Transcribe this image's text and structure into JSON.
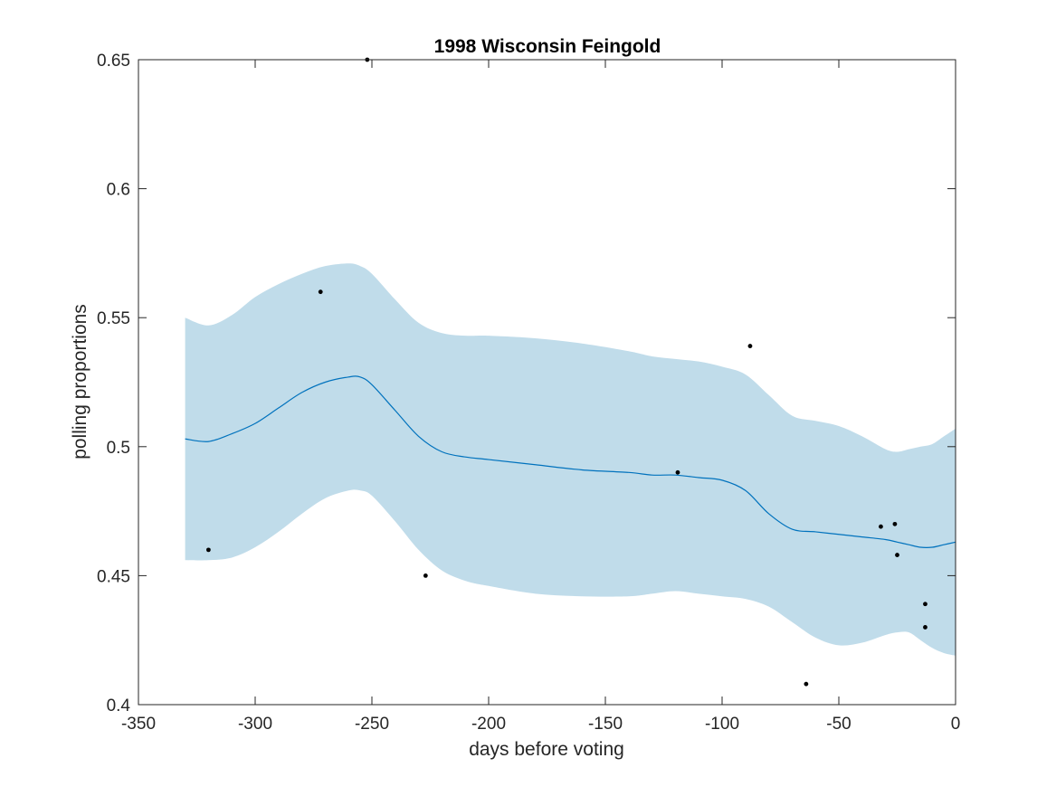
{
  "chart_data": {
    "type": "line",
    "title": "1998 Wisconsin Feingold",
    "xlabel": "days before voting",
    "ylabel": "polling proportions",
    "xlim": [
      -350,
      0
    ],
    "ylim": [
      0.4,
      0.65
    ],
    "x_ticks": [
      -350,
      -300,
      -250,
      -200,
      -150,
      -100,
      -50,
      0
    ],
    "x_tick_labels": [
      "-350",
      "-300",
      "-250",
      "-200",
      "-150",
      "-100",
      "-50",
      "0"
    ],
    "y_ticks": [
      0.4,
      0.45,
      0.5,
      0.55,
      0.6,
      0.65
    ],
    "y_tick_labels": [
      "0.4",
      "0.45",
      "0.5",
      "0.55",
      "0.6",
      "0.65"
    ],
    "grid": false,
    "colors": {
      "band": "#c0dcea",
      "mean_line": "#0072bd",
      "points": "#000000",
      "axis": "#262626"
    },
    "band": {
      "x": [
        -330,
        -320,
        -310,
        -300,
        -290,
        -280,
        -270,
        -260,
        -255,
        -250,
        -240,
        -230,
        -220,
        -210,
        -200,
        -180,
        -160,
        -140,
        -130,
        -120,
        -110,
        -100,
        -90,
        -80,
        -70,
        -60,
        -50,
        -40,
        -30,
        -25,
        -20,
        -15,
        -10,
        -5,
        0
      ],
      "upper": [
        0.55,
        0.547,
        0.551,
        0.558,
        0.563,
        0.567,
        0.57,
        0.571,
        0.57,
        0.567,
        0.557,
        0.548,
        0.544,
        0.543,
        0.543,
        0.542,
        0.54,
        0.537,
        0.535,
        0.534,
        0.533,
        0.531,
        0.528,
        0.52,
        0.512,
        0.51,
        0.508,
        0.504,
        0.499,
        0.498,
        0.499,
        0.5,
        0.501,
        0.504,
        0.507
      ],
      "lower": [
        0.456,
        0.456,
        0.457,
        0.461,
        0.467,
        0.474,
        0.48,
        0.483,
        0.483,
        0.481,
        0.471,
        0.46,
        0.452,
        0.448,
        0.446,
        0.443,
        0.442,
        0.442,
        0.443,
        0.444,
        0.443,
        0.442,
        0.441,
        0.438,
        0.432,
        0.426,
        0.423,
        0.424,
        0.427,
        0.428,
        0.428,
        0.425,
        0.422,
        0.42,
        0.419
      ]
    },
    "series": [
      {
        "type": "line",
        "x": [
          -330,
          -320,
          -310,
          -300,
          -290,
          -280,
          -270,
          -260,
          -255,
          -250,
          -240,
          -230,
          -220,
          -210,
          -200,
          -180,
          -160,
          -140,
          -130,
          -120,
          -110,
          -100,
          -90,
          -80,
          -70,
          -60,
          -50,
          -40,
          -30,
          -25,
          -20,
          -15,
          -10,
          -5,
          0
        ],
        "y": [
          0.503,
          0.502,
          0.505,
          0.509,
          0.515,
          0.521,
          0.525,
          0.527,
          0.527,
          0.524,
          0.514,
          0.504,
          0.498,
          0.496,
          0.495,
          0.493,
          0.491,
          0.49,
          0.489,
          0.489,
          0.488,
          0.487,
          0.483,
          0.474,
          0.468,
          0.467,
          0.466,
          0.465,
          0.464,
          0.463,
          0.462,
          0.461,
          0.461,
          0.462,
          0.463
        ]
      },
      {
        "type": "scatter",
        "x": [
          -320,
          -272,
          -252,
          -227,
          -119,
          -88,
          -64,
          -32,
          -26,
          -25,
          -13,
          -13
        ],
        "y": [
          0.46,
          0.56,
          0.65,
          0.45,
          0.49,
          0.539,
          0.408,
          0.469,
          0.47,
          0.458,
          0.439,
          0.43
        ]
      }
    ]
  }
}
